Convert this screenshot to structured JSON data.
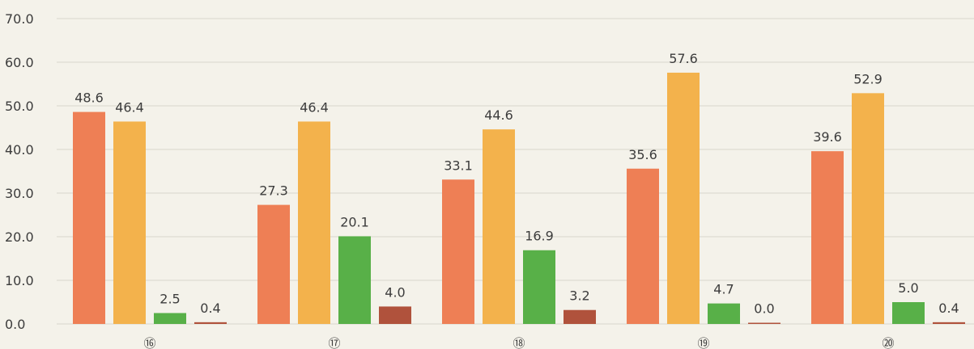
{
  "chart_data": {
    "type": "bar",
    "categories": [
      "⑯",
      "⑰",
      "⑱",
      "⑲",
      "⑳"
    ],
    "series": [
      {
        "values": [
          48.6,
          27.3,
          33.1,
          35.6,
          39.6
        ]
      },
      {
        "values": [
          46.4,
          46.4,
          44.6,
          57.6,
          52.9
        ]
      },
      {
        "values": [
          2.5,
          20.1,
          16.9,
          4.7,
          5.0
        ]
      },
      {
        "values": [
          0.4,
          4.0,
          3.2,
          0.0,
          0.4
        ]
      }
    ],
    "colors": [
      "#ee7f55",
      "#f3b24c",
      "#58b048",
      "#b0523c"
    ],
    "yticks": [
      "0.0",
      "10.0",
      "20.0",
      "30.0",
      "40.0",
      "50.0",
      "60.0",
      "70.0"
    ],
    "ylim": [
      0,
      70
    ],
    "grid": true,
    "legend": "none"
  }
}
